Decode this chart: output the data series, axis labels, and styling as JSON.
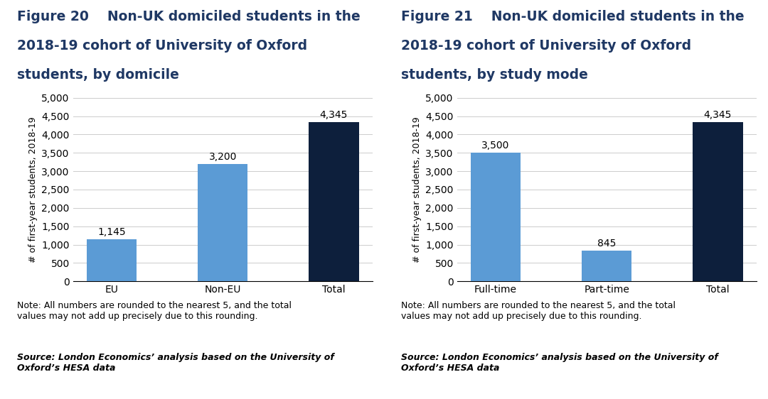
{
  "fig1": {
    "title_line1": "Figure 20    Non-UK domiciled students in the",
    "title_line2": "2018-19 cohort of University of Oxford",
    "title_line3": "students, by domicile",
    "categories": [
      "EU",
      "Non-EU",
      "Total"
    ],
    "values": [
      1145,
      3200,
      4345
    ],
    "bar_colors": [
      "#5B9BD5",
      "#5B9BD5",
      "#0D1F3C"
    ],
    "ylabel": "# of first-year students, 2018-19",
    "ylim": [
      0,
      5000
    ],
    "yticks": [
      0,
      500,
      1000,
      1500,
      2000,
      2500,
      3000,
      3500,
      4000,
      4500,
      5000
    ],
    "value_labels": [
      "1,145",
      "3,200",
      "4,345"
    ],
    "note": "Note: All numbers are rounded to the nearest 5, and the total\nvalues may not add up precisely due to this rounding.",
    "source": "Source: London Economics’ analysis based on the University of\nOxford’s HESA data"
  },
  "fig2": {
    "title_line1": "Figure 21    Non-UK domiciled students in the",
    "title_line2": "2018-19 cohort of University of Oxford",
    "title_line3": "students, by study mode",
    "categories": [
      "Full-time",
      "Part-time",
      "Total"
    ],
    "values": [
      3500,
      845,
      4345
    ],
    "bar_colors": [
      "#5B9BD5",
      "#5B9BD5",
      "#0D1F3C"
    ],
    "ylabel": "# of first-year students, 2018-19",
    "ylim": [
      0,
      5000
    ],
    "yticks": [
      0,
      500,
      1000,
      1500,
      2000,
      2500,
      3000,
      3500,
      4000,
      4500,
      5000
    ],
    "value_labels": [
      "3,500",
      "845",
      "4,345"
    ],
    "note": "Note: All numbers are rounded to the nearest 5, and the total\nvalues may not add up precisely due to this rounding.",
    "source": "Source: London Economics’ analysis based on the University of\nOxford’s HESA data"
  },
  "title_color": "#1F3864",
  "background_color": "#FFFFFF",
  "bar_width": 0.45,
  "grid_color": "#CCCCCC",
  "tick_label_fontsize": 10,
  "ylabel_fontsize": 9,
  "value_label_fontsize": 10,
  "note_fontsize": 9,
  "source_fontsize": 9,
  "title_fontsize": 13.5
}
